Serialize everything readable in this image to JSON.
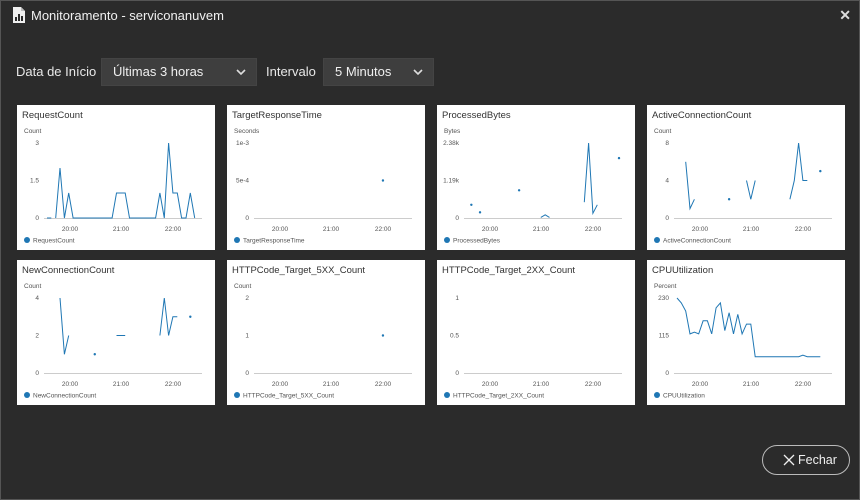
{
  "window": {
    "title": "Monitoramento - serviconanuvem"
  },
  "filters": {
    "start_label": "Data de Início",
    "start_value": "Últimas 3 horas",
    "interval_label": "Intervalo",
    "interval_value": "5 Minutos"
  },
  "footer": {
    "close_label": "Fechar"
  },
  "colors": {
    "series": "#1f77b4"
  },
  "time_ticks": [
    "20:00",
    "21:00",
    "22:00"
  ],
  "chart_data": [
    {
      "type": "line",
      "title": "RequestCount",
      "unit": "Count",
      "legend": "RequestCount",
      "yticks": [
        "0",
        "1.5",
        "3"
      ],
      "ylim": [
        0,
        3
      ],
      "segments": [
        [
          [
            0,
            0
          ],
          [
            1,
            0
          ]
        ],
        [
          [
            2,
            0
          ],
          [
            3,
            2
          ],
          [
            4,
            0
          ],
          [
            5,
            1
          ],
          [
            6,
            0
          ],
          [
            7,
            0
          ],
          [
            8,
            0
          ],
          [
            9,
            0
          ],
          [
            10,
            0
          ],
          [
            11,
            0
          ],
          [
            12,
            0
          ],
          [
            13,
            0
          ],
          [
            14,
            0
          ],
          [
            15,
            0
          ],
          [
            16,
            1
          ],
          [
            17,
            1
          ],
          [
            18,
            1
          ],
          [
            19,
            0
          ],
          [
            20,
            0
          ],
          [
            21,
            0
          ],
          [
            22,
            0
          ],
          [
            23,
            0
          ],
          [
            24,
            0
          ],
          [
            25,
            0
          ],
          [
            26,
            1
          ],
          [
            27,
            0
          ],
          [
            28,
            3
          ],
          [
            29,
            1
          ],
          [
            30,
            1
          ],
          [
            31,
            0
          ],
          [
            32,
            0
          ],
          [
            33,
            1
          ],
          [
            34,
            0
          ]
        ]
      ],
      "points": []
    },
    {
      "type": "line",
      "title": "TargetResponseTime",
      "unit": "Seconds",
      "legend": "TargetResponseTime",
      "yticks": [
        "0",
        "5e-4",
        "1e-3"
      ],
      "ylim": [
        0,
        0.001
      ],
      "segments": [],
      "points": [
        [
          29,
          0.0005
        ]
      ]
    },
    {
      "type": "line",
      "title": "ProcessedBytes",
      "unit": "Bytes",
      "legend": "ProcessedBytes",
      "yticks": [
        "0",
        "1.19k",
        "2.38k"
      ],
      "ylim": [
        0,
        2380
      ],
      "segments": [
        [
          [
            17,
            20
          ],
          [
            18,
            100
          ],
          [
            19,
            20
          ]
        ],
        [
          [
            27,
            500
          ],
          [
            28,
            2380
          ],
          [
            29,
            150
          ],
          [
            30,
            420
          ]
        ]
      ],
      "points": [
        [
          1,
          420
        ],
        [
          3,
          180
        ],
        [
          12,
          880
        ],
        [
          35,
          1900
        ]
      ]
    },
    {
      "type": "line",
      "title": "ActiveConnectionCount",
      "unit": "Count",
      "legend": "ActiveConnectionCount",
      "yticks": [
        "0",
        "4",
        "8"
      ],
      "ylim": [
        0,
        8
      ],
      "segments": [
        [
          [
            2,
            6
          ],
          [
            3,
            1
          ],
          [
            4,
            2
          ]
        ],
        [
          [
            16,
            4
          ],
          [
            17,
            2
          ],
          [
            18,
            4
          ]
        ],
        [
          [
            26,
            2
          ],
          [
            27,
            4
          ],
          [
            28,
            8
          ],
          [
            29,
            4
          ],
          [
            30,
            4
          ]
        ]
      ],
      "points": [
        [
          12,
          2
        ],
        [
          33,
          5
        ]
      ]
    },
    {
      "type": "line",
      "title": "NewConnectionCount",
      "unit": "Count",
      "legend": "NewConnectionCount",
      "yticks": [
        "0",
        "2",
        "4"
      ],
      "ylim": [
        0,
        4
      ],
      "segments": [
        [
          [
            3,
            4
          ],
          [
            4,
            1
          ],
          [
            5,
            2
          ]
        ],
        [
          [
            16,
            2
          ],
          [
            17,
            2
          ],
          [
            18,
            2
          ]
        ],
        [
          [
            26,
            2
          ],
          [
            27,
            4
          ],
          [
            28,
            2
          ],
          [
            29,
            3
          ],
          [
            30,
            3
          ]
        ]
      ],
      "points": [
        [
          11,
          1
        ],
        [
          33,
          3
        ]
      ]
    },
    {
      "type": "line",
      "title": "HTTPCode_Target_5XX_Count",
      "unit": "Count",
      "legend": "HTTPCode_Target_5XX_Count",
      "yticks": [
        "0",
        "1",
        "2"
      ],
      "ylim": [
        0,
        2
      ],
      "segments": [],
      "points": [
        [
          29,
          1
        ]
      ]
    },
    {
      "type": "line",
      "title": "HTTPCode_Target_2XX_Count",
      "unit": "",
      "legend": "HTTPCode_Target_2XX_Count",
      "yticks": [
        "0",
        "0.5",
        "1"
      ],
      "ylim": [
        0,
        1
      ],
      "segments": [],
      "points": []
    },
    {
      "type": "line",
      "title": "CPUUtilization",
      "unit": "Percent",
      "legend": "CPUUtilization",
      "yticks": [
        "0",
        "115",
        "230"
      ],
      "ylim": [
        0,
        230
      ],
      "segments": [
        [
          [
            0,
            230
          ],
          [
            1,
            215
          ],
          [
            2,
            190
          ],
          [
            3,
            120
          ],
          [
            4,
            125
          ],
          [
            5,
            120
          ],
          [
            6,
            160
          ],
          [
            7,
            160
          ],
          [
            8,
            120
          ],
          [
            9,
            200
          ],
          [
            10,
            215
          ],
          [
            11,
            130
          ],
          [
            12,
            185
          ],
          [
            13,
            120
          ],
          [
            14,
            180
          ],
          [
            15,
            120
          ],
          [
            16,
            150
          ],
          [
            17,
            150
          ],
          [
            18,
            50
          ],
          [
            19,
            50
          ],
          [
            20,
            50
          ],
          [
            21,
            50
          ],
          [
            22,
            50
          ],
          [
            23,
            50
          ],
          [
            24,
            50
          ],
          [
            25,
            50
          ],
          [
            26,
            50
          ],
          [
            27,
            50
          ],
          [
            28,
            50
          ],
          [
            29,
            55
          ],
          [
            30,
            50
          ],
          [
            31,
            50
          ],
          [
            32,
            50
          ],
          [
            33,
            50
          ]
        ]
      ],
      "points": []
    }
  ]
}
